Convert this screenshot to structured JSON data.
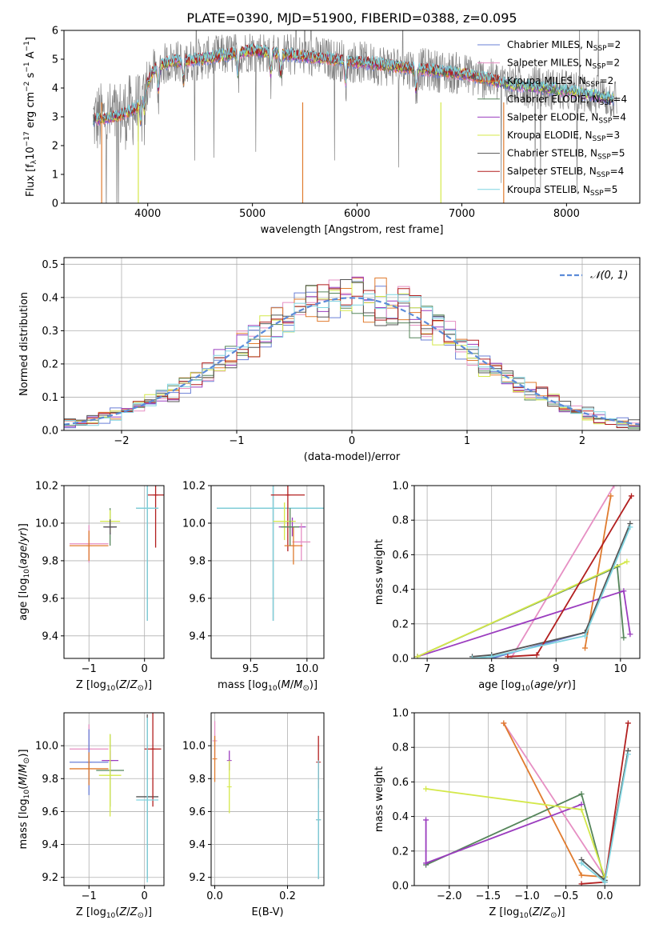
{
  "figure": {
    "title": "PLATE=0390, MJD=51900, FIBERID=0388, z=0.095"
  },
  "models": [
    {
      "name": "Chabrier MILES",
      "nssp": 2,
      "color": "#6a7fd6"
    },
    {
      "name": "Salpeter MILES",
      "nssp": 2,
      "color": "#e68fc3"
    },
    {
      "name": "Kroupa MILES",
      "nssp": 2,
      "color": "#e07b2e"
    },
    {
      "name": "Chabrier ELODIE",
      "nssp": 4,
      "color": "#55855a"
    },
    {
      "name": "Salpeter ELODIE",
      "nssp": 4,
      "color": "#9b3dbf"
    },
    {
      "name": "Kroupa ELODIE",
      "nssp": 3,
      "color": "#d4e84a"
    },
    {
      "name": "Chabrier STELIB",
      "nssp": 5,
      "color": "#555555"
    },
    {
      "name": "Salpeter STELIB",
      "nssp": 4,
      "color": "#b21f1f"
    },
    {
      "name": "Kroupa STELIB",
      "nssp": 5,
      "color": "#7fd4e0"
    }
  ],
  "chart_data": [
    {
      "id": "spectrum",
      "type": "line",
      "xlabel": "wavelength [Angstrom, rest frame]",
      "ylabel": "Flux [f_λ 10^-17 erg cm^-2 s^-1 A^-1]",
      "xlim": [
        3200,
        8700
      ],
      "ylim": [
        0,
        6
      ],
      "xticks": [
        4000,
        5000,
        6000,
        7000,
        8000
      ],
      "yticks": [
        0,
        1,
        2,
        3,
        4,
        5,
        6
      ],
      "legend_position": "upper right",
      "continuum_anchors": [
        [
          3480,
          2.9
        ],
        [
          3700,
          3.0
        ],
        [
          3900,
          3.3
        ],
        [
          4050,
          4.6
        ],
        [
          4200,
          4.9
        ],
        [
          4500,
          5.0
        ],
        [
          5000,
          5.3
        ],
        [
          5500,
          5.1
        ],
        [
          6000,
          4.9
        ],
        [
          6500,
          4.7
        ],
        [
          7000,
          4.5
        ],
        [
          7500,
          4.1
        ],
        [
          8000,
          3.9
        ],
        [
          8500,
          3.6
        ]
      ],
      "absorption_lines": [
        3934,
        3969,
        4102,
        4340,
        4861,
        5175,
        5270,
        5890,
        6563
      ]
    },
    {
      "id": "residuals",
      "type": "line",
      "xlabel": "(data-model)/error",
      "ylabel": "Normed distribution",
      "xlim": [
        -2.5,
        2.5
      ],
      "ylim": [
        0,
        0.52
      ],
      "xticks": [
        -2,
        -1,
        0,
        1,
        2
      ],
      "yticks": [
        0.0,
        0.1,
        0.2,
        0.3,
        0.4,
        0.5
      ],
      "reference_curve": "𝒩(0, 1)",
      "reference_color": "#5b8bd9",
      "bin_width": 0.1
    },
    {
      "id": "age_vs_Z",
      "type": "scatter",
      "xlabel": "Z [log10(Z/Z⊙)]",
      "ylabel": "age [log10(age/yr)]",
      "xlim": [
        -1.45,
        0.35
      ],
      "ylim": [
        9.28,
        10.2
      ],
      "xticks": [
        -1,
        0
      ],
      "yticks": [
        9.4,
        9.6,
        9.8,
        10.0,
        10.2
      ],
      "points": [
        {
          "model": 1,
          "x": -1.0,
          "xerr": 0.35,
          "y": 9.89,
          "yerr": 0.1
        },
        {
          "model": 2,
          "x": -1.0,
          "xerr": 0.35,
          "y": 9.88,
          "yerr": 0.08
        },
        {
          "model": 3,
          "x": -0.62,
          "xerr": 0.12,
          "y": 9.98,
          "yerr": 0.1
        },
        {
          "model": 4,
          "x": -0.62,
          "xerr": 0.1,
          "y": 9.98,
          "yerr": 0.04
        },
        {
          "model": 5,
          "x": -0.62,
          "xerr": 0.18,
          "y": 10.01,
          "yerr": 0.06
        },
        {
          "model": 6,
          "x": -0.62,
          "xerr": 0.12,
          "y": 9.98,
          "yerr": 0.04
        },
        {
          "model": 6,
          "x": 0.05,
          "xerr": 0.2,
          "y": 10.08,
          "yerr": 0.6
        },
        {
          "model": 7,
          "x": 0.2,
          "xerr": 0.15,
          "y": 10.15,
          "yerr": 0.28
        },
        {
          "model": 8,
          "x": 0.05,
          "xerr": 0.2,
          "y": 10.08,
          "yerr": 0.6
        }
      ]
    },
    {
      "id": "age_vs_mass",
      "type": "scatter",
      "xlabel": "mass [log10(M/M⊙)]",
      "ylabel": "",
      "xlim": [
        9.15,
        10.15
      ],
      "ylim": [
        9.28,
        10.2
      ],
      "xticks": [
        9.5,
        10.0
      ],
      "yticks": [
        9.4,
        9.6,
        9.8,
        10.0,
        10.2
      ],
      "points": [
        {
          "model": 6,
          "x": 9.7,
          "xerr": 0.5,
          "y": 10.08,
          "yerr": 0.6
        },
        {
          "model": 8,
          "x": 9.7,
          "xerr": 0.5,
          "y": 10.08,
          "yerr": 0.6
        },
        {
          "model": 7,
          "x": 9.83,
          "xerr": 0.15,
          "y": 10.15,
          "yerr": 0.3
        },
        {
          "model": 4,
          "x": 9.87,
          "xerr": 0.12,
          "y": 9.98,
          "yerr": 0.05
        },
        {
          "model": 5,
          "x": 9.8,
          "xerr": 0.1,
          "y": 10.01,
          "yerr": 0.1
        },
        {
          "model": 1,
          "x": 9.95,
          "xerr": 0.08,
          "y": 9.9,
          "yerr": 0.1
        },
        {
          "model": 2,
          "x": 9.88,
          "xerr": 0.08,
          "y": 9.88,
          "yerr": 0.1
        },
        {
          "model": 3,
          "x": 9.85,
          "xerr": 0.08,
          "y": 9.98,
          "yerr": 0.1
        }
      ]
    },
    {
      "id": "massweight_vs_age",
      "type": "line",
      "xlabel": "age [log10(age/yr)]",
      "ylabel": "mass weight",
      "xlim": [
        6.8,
        10.3
      ],
      "ylim": [
        0,
        1
      ],
      "xticks": [
        7,
        8,
        9,
        10
      ],
      "yticks": [
        0.0,
        0.2,
        0.4,
        0.6,
        0.8,
        1.0
      ],
      "series": [
        {
          "model": 0,
          "x": [
            8.0,
            9.45
          ],
          "y": [
            0.0,
            0.15
          ]
        },
        {
          "model": 1,
          "x": [
            8.3,
            9.9
          ],
          "y": [
            0.0,
            1.0
          ]
        },
        {
          "model": 2,
          "x": [
            9.45,
            9.85
          ],
          "y": [
            0.06,
            0.94
          ]
        },
        {
          "model": 3,
          "x": [
            6.85,
            9.95,
            10.05
          ],
          "y": [
            0.01,
            0.53,
            0.12
          ]
        },
        {
          "model": 4,
          "x": [
            6.85,
            10.05,
            10.15
          ],
          "y": [
            0.01,
            0.39,
            0.14
          ]
        },
        {
          "model": 5,
          "x": [
            6.85,
            10.1
          ],
          "y": [
            0.01,
            0.56
          ]
        },
        {
          "model": 6,
          "x": [
            7.7,
            8.0,
            9.45,
            10.15
          ],
          "y": [
            0.01,
            0.02,
            0.15,
            0.78
          ]
        },
        {
          "model": 7,
          "x": [
            8.25,
            8.7,
            10.17
          ],
          "y": [
            0.01,
            0.02,
            0.94
          ]
        },
        {
          "model": 8,
          "x": [
            7.7,
            8.0,
            9.45,
            10.15
          ],
          "y": [
            0.0,
            0.01,
            0.13,
            0.76
          ]
        }
      ]
    },
    {
      "id": "mass_vs_Z",
      "type": "scatter",
      "xlabel": "Z [log10(Z/Z⊙)]",
      "ylabel": "mass [log10(M/M⊙)]",
      "xlim": [
        -1.45,
        0.35
      ],
      "ylim": [
        9.15,
        10.2
      ],
      "xticks": [
        -1,
        0
      ],
      "yticks": [
        9.2,
        9.4,
        9.6,
        9.8,
        10.0
      ],
      "points": [
        {
          "model": 1,
          "x": -1.0,
          "xerr": 0.35,
          "y": 9.98,
          "yerr": 0.15
        },
        {
          "model": 0,
          "x": -1.0,
          "xerr": 0.35,
          "y": 9.9,
          "yerr": 0.2
        },
        {
          "model": 2,
          "x": -1.0,
          "xerr": 0.35,
          "y": 9.86,
          "yerr": 0.1
        },
        {
          "model": 3,
          "x": -0.62,
          "xerr": 0.25,
          "y": 9.85,
          "yerr": 0.22
        },
        {
          "model": 4,
          "x": -0.62,
          "xerr": 0.15,
          "y": 9.91,
          "yerr": 0.06
        },
        {
          "model": 5,
          "x": -0.62,
          "xerr": 0.2,
          "y": 9.82,
          "yerr": 0.25
        },
        {
          "model": 6,
          "x": 0.05,
          "xerr": 0.2,
          "y": 9.69,
          "yerr": 0.5
        },
        {
          "model": 7,
          "x": 0.15,
          "xerr": 0.15,
          "y": 9.98,
          "yerr": 0.35
        },
        {
          "model": 8,
          "x": 0.05,
          "xerr": 0.2,
          "y": 9.67,
          "yerr": 0.5
        }
      ]
    },
    {
      "id": "mass_vs_ebv",
      "type": "scatter",
      "xlabel": "E(B-V)",
      "ylabel": "",
      "xlim": [
        -0.01,
        0.3
      ],
      "ylim": [
        9.15,
        10.2
      ],
      "xticks": [
        0.0,
        0.2
      ],
      "yticks": [
        9.2,
        9.4,
        9.6,
        9.8,
        10.0
      ],
      "points": [
        {
          "model": 1,
          "x": 0.0,
          "y": 10.03,
          "yerr": 0.12
        },
        {
          "model": 2,
          "x": 0.0,
          "y": 9.92,
          "yerr": 0.14
        },
        {
          "model": 4,
          "x": 0.04,
          "y": 9.91,
          "yerr": 0.06
        },
        {
          "model": 5,
          "x": 0.04,
          "y": 9.75,
          "yerr": 0.16
        },
        {
          "model": 6,
          "x": 0.285,
          "y": 9.55,
          "yerr": 0.36
        },
        {
          "model": 7,
          "x": 0.285,
          "y": 9.9,
          "yerr": 0.16
        },
        {
          "model": 8,
          "x": 0.285,
          "y": 9.55,
          "yerr": 0.36
        }
      ]
    },
    {
      "id": "massweight_vs_Z",
      "type": "line",
      "xlabel": "Z [log10(Z/Z⊙)]",
      "ylabel": "mass weight",
      "xlim": [
        -2.45,
        0.45
      ],
      "ylim": [
        0,
        1
      ],
      "xticks": [
        -2.0,
        -1.5,
        -1.0,
        -0.5,
        0.0
      ],
      "yticks": [
        0.0,
        0.2,
        0.4,
        0.6,
        0.8,
        1.0
      ],
      "series": [
        {
          "model": 1,
          "x": [
            -1.3,
            0.0
          ],
          "y": [
            0.94,
            0.05
          ]
        },
        {
          "model": 2,
          "x": [
            -1.3,
            -0.3,
            0.0
          ],
          "y": [
            0.94,
            0.06,
            0.05
          ]
        },
        {
          "model": 3,
          "x": [
            -2.3,
            -0.3,
            0.0,
            0.3
          ],
          "y": [
            0.12,
            0.53,
            0.03,
            0.78
          ]
        },
        {
          "model": 4,
          "x": [
            -2.3,
            -2.3,
            -0.3
          ],
          "y": [
            0.38,
            0.13,
            0.47
          ]
        },
        {
          "model": 5,
          "x": [
            -2.3,
            -0.3,
            0.0
          ],
          "y": [
            0.56,
            0.44,
            0.05
          ]
        },
        {
          "model": 6,
          "x": [
            -0.3,
            0.0,
            0.3
          ],
          "y": [
            0.15,
            0.03,
            0.78
          ]
        },
        {
          "model": 7,
          "x": [
            -0.3,
            0.0,
            0.3
          ],
          "y": [
            0.01,
            0.02,
            0.94
          ]
        },
        {
          "model": 8,
          "x": [
            -0.3,
            0.0,
            0.3
          ],
          "y": [
            0.13,
            0.02,
            0.76
          ]
        }
      ]
    }
  ]
}
